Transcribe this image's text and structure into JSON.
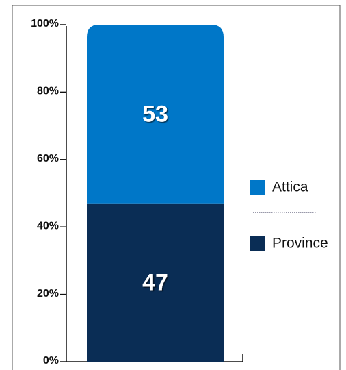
{
  "chart_data": {
    "type": "stacked-bar",
    "categories": [
      null
    ],
    "series": [
      {
        "name": "Province",
        "color": "#0a2d55",
        "values": [
          47
        ]
      },
      {
        "name": "Attica",
        "color": "#0077c8",
        "values": [
          53
        ]
      }
    ],
    "ylim": [
      0,
      100
    ],
    "yticks": [
      {
        "value": 0,
        "label": "0%"
      },
      {
        "value": 20,
        "label": "20%"
      },
      {
        "value": 40,
        "label": "40%"
      },
      {
        "value": 60,
        "label": "60%"
      },
      {
        "value": 80,
        "label": "80%"
      },
      {
        "value": 100,
        "label": "100%"
      }
    ],
    "legend": "right"
  }
}
